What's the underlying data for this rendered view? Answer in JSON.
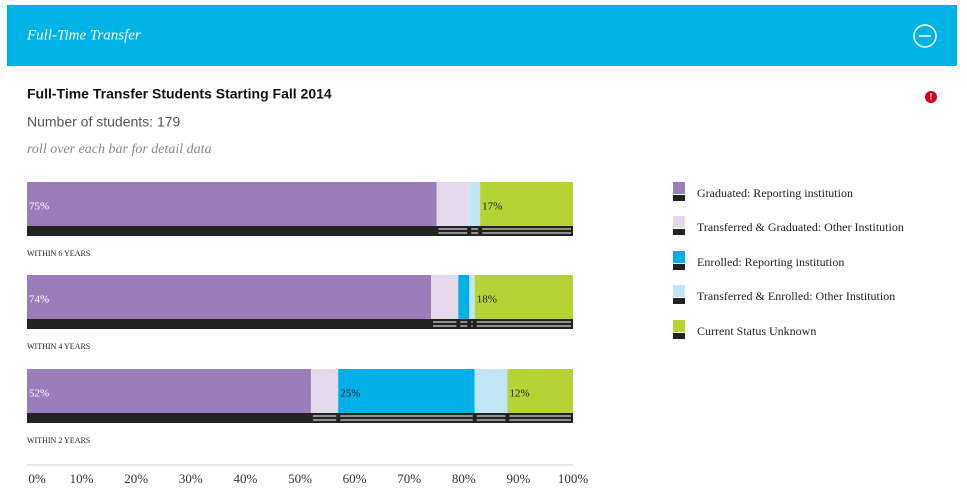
{
  "header": {
    "title": "Full-Time Transfer"
  },
  "chart_data": {
    "type": "bar",
    "orientation": "horizontal",
    "stacked": true,
    "title": "Full-Time Transfer Students Starting Fall 2014",
    "subtitle": "Number of students: 179",
    "note": "roll over each bar for detail data",
    "categories": [
      "WITHIN 6 YEARS",
      "WITHIN 4 YEARS",
      "WITHIN 2 YEARS"
    ],
    "series": [
      {
        "name": "Graduated: Reporting institution",
        "color": "#9a7dbb",
        "values": [
          75,
          74,
          52
        ],
        "value_labels": [
          "75%",
          "74%",
          "52%"
        ]
      },
      {
        "name": "Transferred & Graduated: Other Institution",
        "color": "#e4d9ea",
        "values": [
          6,
          5,
          5
        ]
      },
      {
        "name": "Enrolled: Reporting institution",
        "color": "#00aee8",
        "values": [
          0,
          2,
          25
        ],
        "value_labels": [
          null,
          null,
          "25%"
        ]
      },
      {
        "name": "Transferred & Enrolled: Other Institution",
        "color": "#bfe5f6",
        "values": [
          2,
          1,
          6
        ]
      },
      {
        "name": "Current Status Unknown",
        "color": "#b5d334",
        "values": [
          17,
          18,
          12
        ],
        "value_labels": [
          "17%",
          "18%",
          "12%"
        ]
      }
    ],
    "xlim": [
      0,
      100
    ],
    "xticks": [
      {
        "value": 0,
        "label": "0%"
      },
      {
        "value": 10,
        "label": "10%"
      },
      {
        "value": 20,
        "label": "20%"
      },
      {
        "value": 30,
        "label": "30%"
      },
      {
        "value": 40,
        "label": "40%"
      },
      {
        "value": 50,
        "label": "50%"
      },
      {
        "value": 60,
        "label": "60%"
      },
      {
        "value": 70,
        "label": "70%"
      },
      {
        "value": 80,
        "label": "80%"
      },
      {
        "value": 90,
        "label": "90%"
      },
      {
        "value": 100,
        "label": "100%"
      }
    ]
  }
}
